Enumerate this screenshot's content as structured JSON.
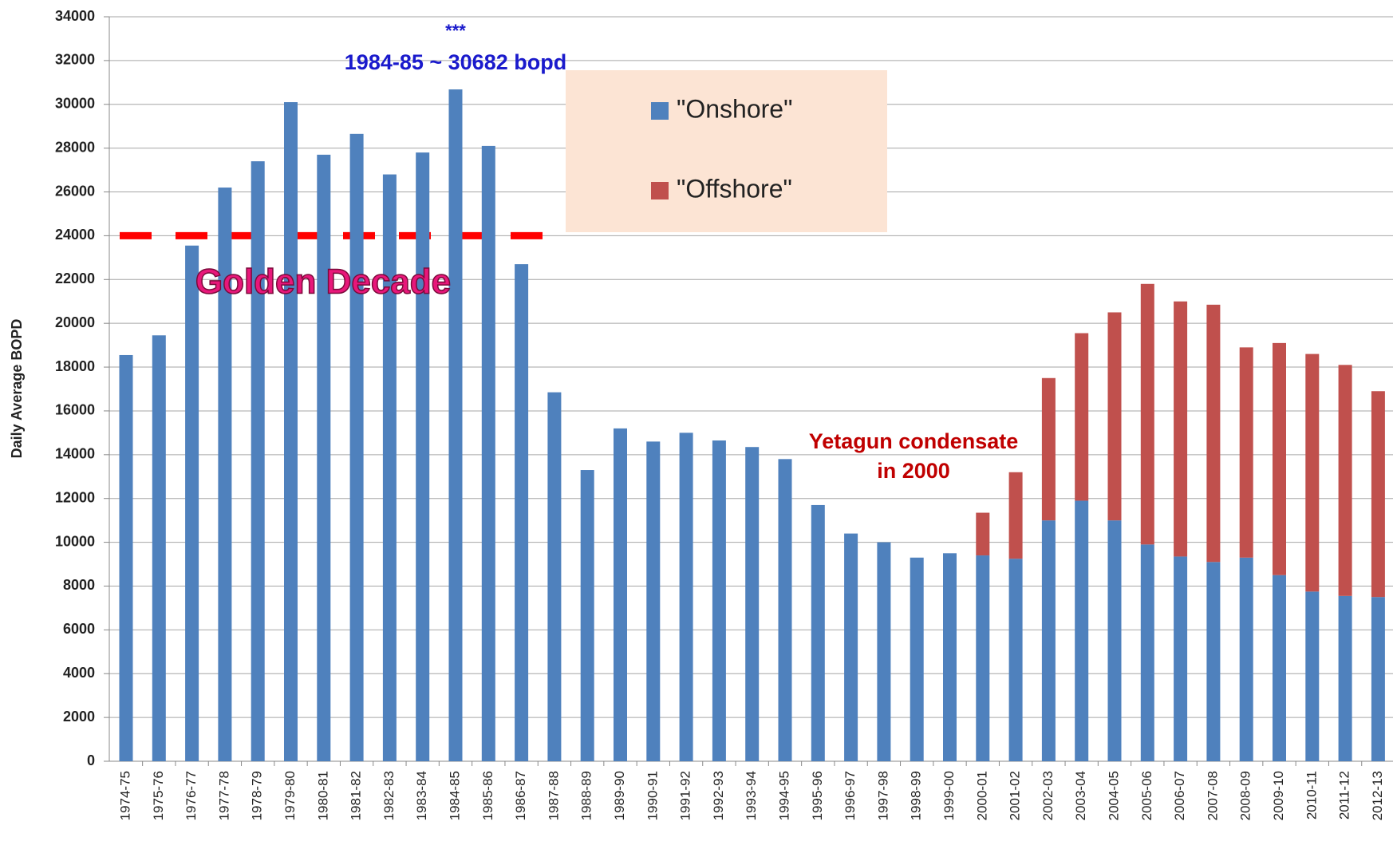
{
  "chart_data": {
    "type": "stacked_bar",
    "y_label": "Daily Average BOPD",
    "categories": [
      "1974-75",
      "1975-76",
      "1976-77",
      "1977-78",
      "1978-79",
      "1979-80",
      "1980-81",
      "1981-82",
      "1982-83",
      "1983-84",
      "1984-85",
      "1985-86",
      "1986-87",
      "1987-88",
      "1988-89",
      "1989-90",
      "1990-91",
      "1991-92",
      "1992-93",
      "1993-94",
      "1994-95",
      "1995-96",
      "1996-97",
      "1997-98",
      "1998-99",
      "1999-00",
      "2000-01",
      "2001-02",
      "2002-03",
      "2003-04",
      "2004-05",
      "2005-06",
      "2006-07",
      "2007-08",
      "2008-09",
      "2009-10",
      "2010-11",
      "2011-12",
      "2012-13"
    ],
    "series": [
      {
        "name": "\"Onshore\"",
        "color": "#4f81bd",
        "values": [
          18550,
          19450,
          23550,
          26200,
          27400,
          30100,
          27700,
          28650,
          26800,
          27800,
          30682,
          28100,
          22700,
          16850,
          13300,
          15200,
          14600,
          15000,
          14650,
          14350,
          13800,
          11700,
          10400,
          10000,
          9300,
          9500,
          9400,
          9250,
          11000,
          11900,
          11000,
          9900,
          9350,
          9100,
          9300,
          8500,
          7750,
          7550,
          7500
        ]
      },
      {
        "name": "\"Offshore\"",
        "color": "#c0504d",
        "values": [
          null,
          null,
          null,
          null,
          null,
          null,
          null,
          null,
          null,
          null,
          null,
          null,
          null,
          null,
          null,
          null,
          null,
          null,
          null,
          null,
          null,
          null,
          null,
          null,
          null,
          null,
          1950,
          3950,
          6500,
          7650,
          9500,
          11900,
          11650,
          11750,
          9600,
          10600,
          10850,
          10550,
          9400
        ]
      }
    ],
    "ylim": [
      0,
      34000
    ],
    "yticks": [
      0,
      2000,
      4000,
      6000,
      8000,
      10000,
      12000,
      14000,
      16000,
      18000,
      20000,
      22000,
      24000,
      26000,
      28000,
      30000,
      32000,
      34000
    ],
    "grid": true,
    "threshold": 24000,
    "threshold_color": "#ff0000",
    "annotations": {
      "stars": "***",
      "peak": "1984-85 ~ 30682 bopd",
      "golden": "Golden Decade",
      "yetagun_1": "Yetagun condensate",
      "yetagun_2": "in 2000"
    }
  }
}
